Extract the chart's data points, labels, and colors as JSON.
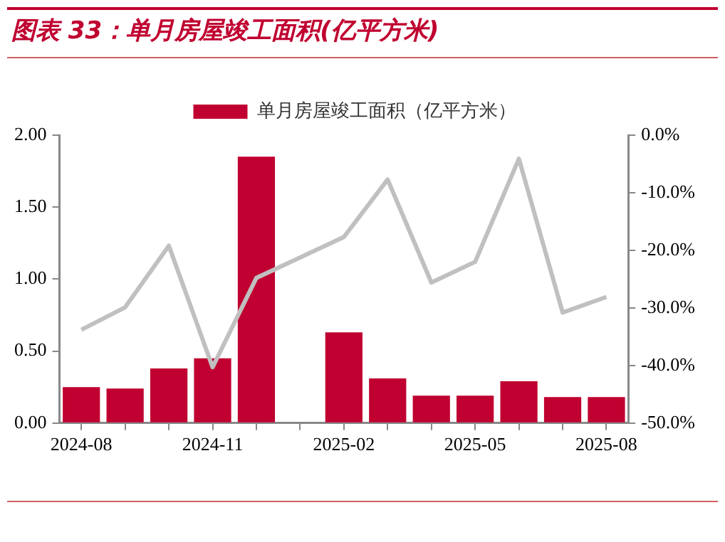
{
  "chart_data": {
    "type": "bar",
    "title": "图表 33：单月房屋竣工面积(亿平方米)",
    "categories": [
      "2024-08",
      null,
      null,
      "2024-11",
      null,
      null,
      "2025-02",
      null,
      null,
      "2025-05",
      null,
      null,
      "2025-08"
    ],
    "series": [
      {
        "name": "单月房屋竣工面积（亿平方米）",
        "color": "#c00030",
        "values": [
          0.25,
          0.24,
          0.38,
          0.45,
          1.85,
          null,
          0.63,
          0.31,
          0.19,
          0.19,
          0.29,
          0.18,
          0.18
        ]
      },
      {
        "type": "line",
        "axis": "y2",
        "color": "#c0c0c0",
        "values": [
          -33.8,
          -29.9,
          -19.2,
          -40.3,
          -24.8,
          null,
          -17.7,
          -7.7,
          -25.6,
          -22,
          -4.1,
          -30.8,
          -28.1
        ]
      }
    ],
    "ylim": [
      0,
      2
    ],
    "yticks": [
      {
        "value": 0,
        "label": "0.00"
      },
      {
        "value": 0.5,
        "label": "0.50"
      },
      {
        "value": 1,
        "label": "1.00"
      },
      {
        "value": 1.5,
        "label": "1.50"
      },
      {
        "value": 2,
        "label": "2.00"
      }
    ],
    "y2lim": [
      -50,
      0
    ],
    "y2ticks": [
      {
        "value": -50,
        "label": "-50.0%"
      },
      {
        "value": -40,
        "label": "-40.0%"
      },
      {
        "value": -30,
        "label": "-30.0%"
      },
      {
        "value": -20,
        "label": "-20.0%"
      },
      {
        "value": -10,
        "label": "-10.0%"
      },
      {
        "value": 0,
        "label": "0.0%"
      }
    ],
    "legend": "top",
    "grid": false,
    "marker": "none",
    "line_style": "solid"
  }
}
